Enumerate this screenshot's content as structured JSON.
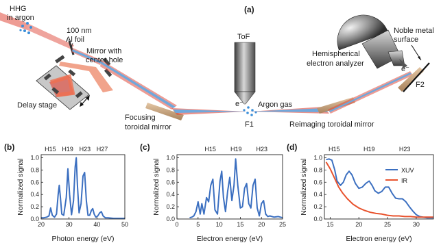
{
  "schematic": {
    "panel_label": "(a)",
    "hhg_label_1": "HHG",
    "hhg_label_2": "in argon",
    "foil_label_1": "100 nm",
    "foil_label_2": "Al foil",
    "mirror_hole_label_1": "Mirror with",
    "mirror_hole_label_2": "center hole",
    "delay_stage_label": "Delay stage",
    "tof_label": "ToF",
    "electron_label": "e⁻",
    "argon_gas_label": "Argon gas",
    "f1_label": "F1",
    "focusing_label_1": "Focusing",
    "focusing_label_2": "toroidal mirror",
    "analyzer_label_1": "Hemispherical",
    "analyzer_label_2": "electron analyzer",
    "surface_label_1": "Noble metal",
    "surface_label_2": "surface",
    "surface_electron_label": "e⁻",
    "f2_label": "F2",
    "reimaging_label": "Reimaging toroidal mirror"
  },
  "colors": {
    "xuv": "#3b6fc0",
    "ir": "#e8532e",
    "beam_red": "#e04a3c",
    "beam_blue": "#6fa8dc",
    "mirror": "#c9a27a",
    "gray_dark": "#5a5a5a"
  },
  "chart_data": [
    {
      "panel": "(b)",
      "type": "line",
      "xlabel": "Photon energy (eV)",
      "ylabel": "Normalized signal",
      "xlim": [
        20,
        50
      ],
      "ylim": [
        0,
        1.05
      ],
      "xticks": [
        20,
        30,
        40,
        50
      ],
      "yticks": [
        0,
        0.2,
        0.4,
        0.6,
        0.8,
        1.0
      ],
      "ytick_labels": [
        "0.0",
        "0.2",
        "0.4",
        "0.6",
        "0.8",
        "1.0"
      ],
      "harmonic_labels": [
        {
          "text": "H15",
          "x": 23.3
        },
        {
          "text": "H19",
          "x": 29.5
        },
        {
          "text": "H23",
          "x": 35.7
        },
        {
          "text": "H27",
          "x": 41.9
        }
      ],
      "series": [
        {
          "color": "#3b6fc0",
          "x": [
            20,
            21,
            22,
            22.8,
            23.4,
            24,
            24.8,
            25.5,
            26.1,
            26.5,
            26.9,
            27.4,
            28.1,
            29.0,
            29.6,
            30.2,
            30.9,
            31.6,
            32.2,
            32.6,
            33.0,
            33.6,
            34.3,
            35.0,
            35.6,
            36.2,
            36.8,
            37.4,
            38.0,
            38.5,
            39.0,
            39.6,
            40.3,
            41.0,
            41.6,
            42.2,
            43.0,
            44.0,
            46,
            48,
            50
          ],
          "y": [
            0.02,
            0.02,
            0.03,
            0.05,
            0.18,
            0.06,
            0.03,
            0.08,
            0.4,
            0.55,
            0.35,
            0.08,
            0.06,
            0.35,
            0.82,
            0.4,
            0.07,
            0.3,
            0.85,
            1.0,
            0.55,
            0.1,
            0.25,
            0.7,
            0.76,
            0.3,
            0.06,
            0.06,
            0.14,
            0.17,
            0.08,
            0.03,
            0.05,
            0.1,
            0.12,
            0.05,
            0.02,
            0.02,
            0.01,
            0.01,
            0.01
          ]
        }
      ]
    },
    {
      "panel": "(c)",
      "type": "line",
      "xlabel": "Electron energy (eV)",
      "ylabel": "Normalized signal",
      "xlim": [
        0,
        25
      ],
      "ylim": [
        0,
        1.05
      ],
      "xticks": [
        0,
        5,
        10,
        15,
        20,
        25
      ],
      "yticks": [
        0,
        0.2,
        0.4,
        0.6,
        0.8,
        1.0
      ],
      "ytick_labels": [
        "0.0",
        "0.2",
        "0.4",
        "0.6",
        "0.8",
        "1.0"
      ],
      "harmonic_labels": [
        {
          "text": "H15",
          "x": 7.9
        },
        {
          "text": "H19",
          "x": 14.0
        },
        {
          "text": "H23",
          "x": 20.1
        }
      ],
      "series": [
        {
          "color": "#3b6fc0",
          "x": [
            3,
            3.5,
            4.0,
            4.5,
            5.0,
            5.5,
            5.9,
            6.4,
            7.0,
            7.5,
            8.0,
            8.5,
            9.0,
            9.6,
            10.2,
            10.6,
            11.0,
            11.5,
            12.0,
            12.5,
            13.0,
            13.5,
            13.9,
            14.4,
            15.0,
            15.5,
            16.0,
            16.5,
            17.0,
            17.5,
            18.0,
            18.5,
            19.0,
            19.5,
            20.0,
            20.5,
            21.0,
            21.5,
            22.0,
            23,
            24,
            25
          ],
          "y": [
            0.02,
            0.03,
            0.05,
            0.12,
            0.28,
            0.08,
            0.25,
            0.08,
            0.35,
            0.28,
            0.55,
            0.65,
            0.15,
            0.08,
            0.62,
            0.78,
            0.35,
            0.12,
            0.45,
            0.68,
            0.3,
            0.55,
            0.98,
            0.55,
            0.18,
            0.2,
            0.5,
            0.58,
            0.25,
            0.18,
            0.55,
            0.65,
            0.18,
            0.05,
            0.25,
            0.3,
            0.08,
            0.04,
            0.05,
            0.03,
            0.04,
            0.02
          ]
        }
      ]
    },
    {
      "panel": "(d)",
      "type": "line",
      "xlabel": "Electron energy (eV)",
      "ylabel": "Normalized signal",
      "xlim": [
        14,
        33
      ],
      "ylim": [
        0,
        1.05
      ],
      "xticks": [
        15,
        20,
        25,
        30
      ],
      "yticks": [
        0,
        0.2,
        0.4,
        0.6,
        0.8,
        1.0
      ],
      "ytick_labels": [
        "0.0",
        "0.2",
        "0.4",
        "0.6",
        "0.8",
        "1.0"
      ],
      "harmonic_labels": [
        {
          "text": "H15",
          "x": 15.7
        },
        {
          "text": "H19",
          "x": 21.8
        },
        {
          "text": "H23",
          "x": 28.0
        }
      ],
      "legend_position": "top-right",
      "series": [
        {
          "name": "XUV",
          "color": "#3b6fc0",
          "x": [
            14.3,
            14.8,
            15.3,
            15.8,
            16.2,
            16.8,
            17.3,
            17.8,
            18.3,
            18.8,
            19.4,
            20.0,
            20.6,
            21.2,
            21.8,
            22.3,
            22.8,
            23.4,
            24.0,
            24.6,
            25.2,
            25.8,
            26.4,
            27.0,
            27.6,
            28.2,
            28.8,
            29.4,
            30.0,
            30.6,
            31.2,
            31.8,
            32.4,
            33
          ],
          "y": [
            0.97,
            0.98,
            0.96,
            0.8,
            0.62,
            0.55,
            0.6,
            0.72,
            0.78,
            0.72,
            0.58,
            0.5,
            0.52,
            0.58,
            0.62,
            0.55,
            0.46,
            0.42,
            0.45,
            0.52,
            0.52,
            0.42,
            0.34,
            0.33,
            0.33,
            0.28,
            0.2,
            0.13,
            0.07,
            0.04,
            0.03,
            0.02,
            0.02,
            0.02
          ]
        },
        {
          "name": "IR",
          "color": "#e8532e",
          "x": [
            14.3,
            15.0,
            15.8,
            16.5,
            17.2,
            18.0,
            19.0,
            20.0,
            21.0,
            22.0,
            23.0,
            24.0,
            25.0,
            26.0,
            27.0,
            28.0,
            29.0,
            30.0,
            31.0,
            32.0,
            33
          ],
          "y": [
            0.93,
            0.82,
            0.66,
            0.52,
            0.42,
            0.33,
            0.24,
            0.18,
            0.14,
            0.11,
            0.09,
            0.08,
            0.06,
            0.05,
            0.05,
            0.04,
            0.04,
            0.03,
            0.03,
            0.03,
            0.03
          ]
        }
      ]
    }
  ]
}
